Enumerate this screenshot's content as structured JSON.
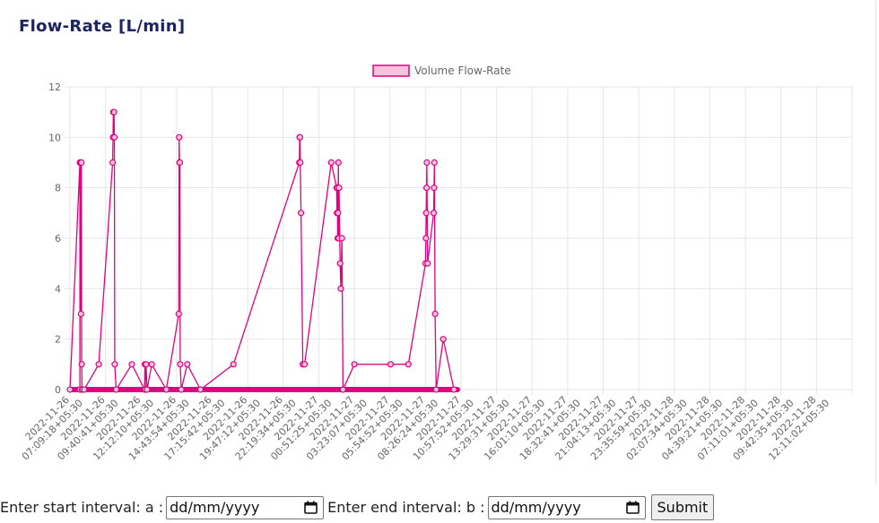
{
  "header": {
    "title": "Flow-Rate [L/min]"
  },
  "form": {
    "start_label": "Enter start interval: a :",
    "start_placeholder": "dd/mm/yyyy",
    "end_label": "Enter end interval: b :",
    "end_placeholder": "dd/mm/yyyy",
    "submit_label": "Submit"
  },
  "chart_data": {
    "type": "line",
    "title": "",
    "xlabel": "",
    "ylabel": "",
    "ylim": [
      0,
      12
    ],
    "yticks": [
      0,
      2,
      4,
      6,
      8,
      10,
      12
    ],
    "grid": true,
    "legend_position": "top-center",
    "colors": {
      "line": "#e3007f",
      "fill": "#f8c4dd",
      "grid": "#e6e6e6",
      "tick_text": "#666666"
    },
    "x_tick_labels": [
      "2022-11-26 07:09:18+05:30",
      "2022-11-26 09:40:41+05:30",
      "2022-11-26 12:12:10+05:30",
      "2022-11-26 14:43:54+05:30",
      "2022-11-26 17:15:42+05:30",
      "2022-11-26 19:47:12+05:30",
      "2022-11-26 22:19:34+05:30",
      "2022-11-27 00:51:25+05:30",
      "2022-11-27 03:23:07+05:30",
      "2022-11-27 05:54:52+05:30",
      "2022-11-27 08:26:24+05:30",
      "2022-11-27 10:57:52+05:30",
      "2022-11-27 13:29:31+05:30",
      "2022-11-27 16:01:10+05:30",
      "2022-11-27 18:32:41+05:30",
      "2022-11-27 21:04:13+05:30",
      "2022-11-27 23:35:59+05:30",
      "2022-11-28 02:07:34+05:30",
      "2022-11-28 04:39:21+05:30",
      "2022-11-28 07:11:01+05:30",
      "2022-11-28 09:42:35+05:30",
      "2022-11-28 12:11:02+05:30"
    ],
    "series": [
      {
        "name": "Volume Flow-Rate",
        "x": [
          0.0,
          0.28,
          0.28,
          0.29,
          0.3,
          0.31,
          0.32,
          0.33,
          0.34,
          0.35,
          0.4,
          0.81,
          1.2,
          1.21,
          1.22,
          1.24,
          1.25,
          1.26,
          1.3,
          1.74,
          2.1,
          2.11,
          2.12,
          2.13,
          2.14,
          2.17,
          2.3,
          2.71,
          3.06,
          3.07,
          3.08,
          3.09,
          3.1,
          3.13,
          3.3,
          3.67,
          4.6,
          6.45,
          6.46,
          6.47,
          6.48,
          6.5,
          6.55,
          6.6,
          7.35,
          7.5,
          7.51,
          7.52,
          7.53,
          7.54,
          7.55,
          7.56,
          7.57,
          7.6,
          7.62,
          7.65,
          7.68,
          8.0,
          9.02,
          9.52,
          10.0,
          10.01,
          10.02,
          10.03,
          10.04,
          10.06,
          10.23,
          10.24,
          10.25,
          10.27,
          10.3,
          10.5,
          10.8
        ],
        "y": [
          0,
          9,
          0,
          9,
          9,
          3,
          9,
          1,
          0,
          0,
          0,
          1,
          9,
          10,
          11,
          11,
          10,
          1,
          0,
          1,
          0,
          1,
          0,
          1,
          1,
          0,
          1,
          0,
          3,
          10,
          9,
          9,
          1,
          0,
          1,
          0,
          1,
          9,
          10,
          10,
          9,
          7,
          1,
          1,
          9,
          8,
          7,
          8,
          6,
          7,
          9,
          6,
          8,
          5,
          4,
          6,
          0,
          1,
          1,
          1,
          5,
          6,
          7,
          8,
          9,
          5,
          7,
          8,
          9,
          3,
          0,
          2,
          0
        ]
      }
    ]
  }
}
